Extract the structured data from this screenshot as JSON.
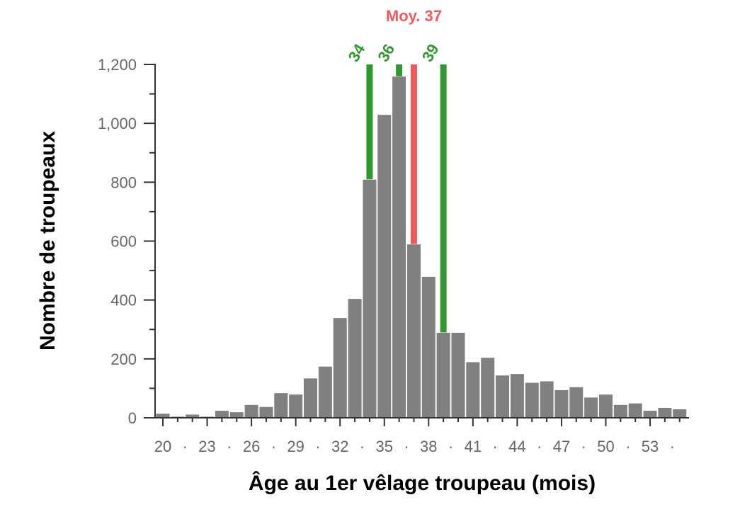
{
  "chart_data": {
    "type": "bar",
    "xlabel": "Âge au 1er vêlage troupeau (mois)",
    "ylabel": "Nombre de troupeaux",
    "x": [
      20,
      21,
      22,
      23,
      24,
      25,
      26,
      27,
      28,
      29,
      30,
      31,
      32,
      33,
      34,
      35,
      36,
      37,
      38,
      39,
      40,
      41,
      42,
      43,
      44,
      45,
      46,
      47,
      48,
      49,
      50,
      51,
      52,
      53,
      54,
      55
    ],
    "values": [
      15,
      5,
      12,
      5,
      25,
      20,
      45,
      38,
      85,
      80,
      135,
      175,
      340,
      405,
      810,
      1030,
      1160,
      590,
      480,
      290,
      290,
      190,
      205,
      145,
      150,
      120,
      125,
      95,
      105,
      70,
      80,
      45,
      50,
      25,
      35,
      30
    ],
    "bar_color": "#808080",
    "x_ticks": [
      "20",
      "·",
      "23",
      "·",
      "26",
      "·",
      "29",
      "·",
      "32",
      "·",
      "35",
      "·",
      "38",
      "·",
      "41",
      "·",
      "44",
      "·",
      "47",
      "·",
      "50",
      "·",
      "53",
      "·"
    ],
    "x_tick_values": [
      20,
      21.5,
      23,
      24.5,
      26,
      27.5,
      29,
      30.5,
      32,
      33.5,
      35,
      36.5,
      38,
      39.5,
      41,
      42.5,
      44,
      45.5,
      47,
      48.5,
      50,
      51.5,
      53,
      54.5
    ],
    "y_ticks": [
      "0",
      "200",
      "400",
      "600",
      "800",
      "1,000",
      "1,200"
    ],
    "y_tick_values": [
      0,
      200,
      400,
      600,
      800,
      1000,
      1200
    ],
    "ylim": [
      0,
      1200
    ],
    "grid": false,
    "reference_lines": [
      {
        "value": 34,
        "label": "34",
        "color": "#2e9a2e",
        "top": 1200
      },
      {
        "value": 36,
        "label": "36",
        "color": "#2e9a2e",
        "top": 1200
      },
      {
        "value": 37,
        "label": "Moy. 37",
        "color": "#f05a5a",
        "top": 1200
      },
      {
        "value": 39,
        "label": "39",
        "color": "#2e9a2e",
        "top": 1200
      }
    ]
  }
}
